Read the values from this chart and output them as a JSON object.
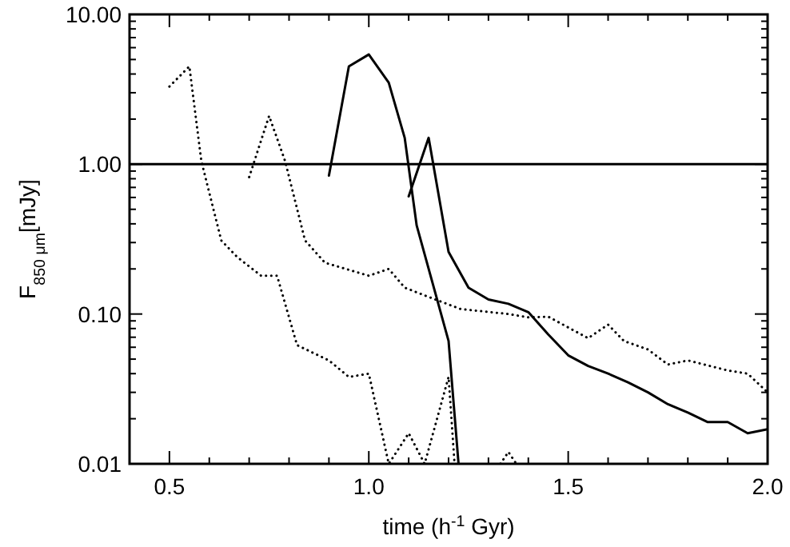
{
  "chart_data": {
    "type": "line",
    "xlabel": "time (h$^{-1}$ Gyr)",
    "ylabel": "F$_{850 μm}$[mJy]",
    "log": "y",
    "grid": false,
    "xlim": [
      0.4,
      2.0
    ],
    "xticks": [
      {
        "value": 0.5,
        "label": "0.5"
      },
      {
        "value": 0.6,
        "label": null
      },
      {
        "value": 0.7,
        "label": null
      },
      {
        "value": 0.8,
        "label": null
      },
      {
        "value": 0.9,
        "label": null
      },
      {
        "value": 1.0,
        "label": "1.0"
      },
      {
        "value": 1.1,
        "label": null
      },
      {
        "value": 1.2,
        "label": null
      },
      {
        "value": 1.3,
        "label": null
      },
      {
        "value": 1.4,
        "label": null
      },
      {
        "value": 1.5,
        "label": "1.5"
      },
      {
        "value": 1.6,
        "label": null
      },
      {
        "value": 1.7,
        "label": null
      },
      {
        "value": 1.8,
        "label": null
      },
      {
        "value": 1.9,
        "label": null
      },
      {
        "value": 2.0,
        "label": "2.0"
      }
    ],
    "ylim": [
      0.01,
      10
    ],
    "yticks": [
      {
        "value": 0.01,
        "label": "0.01"
      },
      {
        "value": 0.02,
        "label": null
      },
      {
        "value": 0.03,
        "label": null
      },
      {
        "value": 0.04,
        "label": null
      },
      {
        "value": 0.05,
        "label": null
      },
      {
        "value": 0.06,
        "label": null
      },
      {
        "value": 0.07,
        "label": null
      },
      {
        "value": 0.08,
        "label": null
      },
      {
        "value": 0.09,
        "label": null
      },
      {
        "value": 0.1,
        "label": "0.10"
      },
      {
        "value": 0.2,
        "label": null
      },
      {
        "value": 0.3,
        "label": null
      },
      {
        "value": 0.4,
        "label": null
      },
      {
        "value": 0.5,
        "label": null
      },
      {
        "value": 0.6,
        "label": null
      },
      {
        "value": 0.7,
        "label": null
      },
      {
        "value": 0.8,
        "label": null
      },
      {
        "value": 0.9,
        "label": null
      },
      {
        "value": 1,
        "label": "1.00"
      },
      {
        "value": 2,
        "label": null
      },
      {
        "value": 3,
        "label": null
      },
      {
        "value": 4,
        "label": null
      },
      {
        "value": 5,
        "label": null
      },
      {
        "value": 6,
        "label": null
      },
      {
        "value": 7,
        "label": null
      },
      {
        "value": 8,
        "label": null
      },
      {
        "value": 9,
        "label": null
      },
      {
        "value": 10,
        "label": "10.00"
      }
    ],
    "ref_lines": [
      {
        "axis": "y",
        "value": 1,
        "color": "#000000",
        "line_style": "solid"
      }
    ],
    "series": [
      {
        "color": "#000000",
        "line_style": "solid",
        "x": [
          0.9,
          0.95,
          1.0,
          1.05,
          1.09,
          1.12,
          1.2,
          1.225
        ],
        "values": [
          0.84,
          4.5,
          5.4,
          3.5,
          1.5,
          0.39,
          0.066,
          0.01
        ]
      },
      {
        "color": "#000000",
        "line_style": "solid",
        "x": [
          1.1,
          1.15,
          1.2,
          1.25,
          1.3,
          1.35,
          1.4,
          1.45,
          1.5,
          1.55,
          1.6,
          1.65,
          1.7,
          1.75,
          1.8,
          1.85,
          1.9,
          1.95,
          2.0
        ],
        "values": [
          0.61,
          1.5,
          0.26,
          0.15,
          0.125,
          0.117,
          0.103,
          0.073,
          0.053,
          0.045,
          0.04,
          0.035,
          0.03,
          0.025,
          0.022,
          0.019,
          0.019,
          0.016,
          0.017
        ]
      },
      {
        "color": "#000000",
        "line_style": "dotted",
        "x": [
          0.5,
          0.55,
          0.58,
          0.63,
          0.67,
          0.73,
          0.77,
          0.82,
          0.9,
          0.95,
          1.0,
          1.05,
          1.1,
          1.14,
          1.2,
          1.215,
          1.27,
          1.33,
          1.35,
          1.37
        ],
        "values": [
          3.3,
          4.5,
          1.05,
          0.31,
          0.24,
          0.18,
          0.18,
          0.062,
          0.049,
          0.038,
          0.04,
          0.01,
          0.016,
          0.01,
          0.038,
          0.01,
          null,
          0.01,
          0.012,
          0.01
        ]
      },
      {
        "color": "#000000",
        "line_style": "dotted",
        "x": [
          0.7,
          0.75,
          0.79,
          0.84,
          0.89,
          1.0,
          1.05,
          1.09,
          1.15,
          1.23,
          1.35,
          1.4,
          1.45,
          1.55,
          1.6,
          1.64,
          1.7,
          1.75,
          1.8,
          1.9,
          1.95,
          2.0
        ],
        "values": [
          0.82,
          2.1,
          1.05,
          0.31,
          0.22,
          0.18,
          0.2,
          0.15,
          0.13,
          0.108,
          0.1,
          0.095,
          0.096,
          0.069,
          0.085,
          0.066,
          0.058,
          0.046,
          0.049,
          0.042,
          0.04,
          0.03
        ]
      }
    ]
  }
}
